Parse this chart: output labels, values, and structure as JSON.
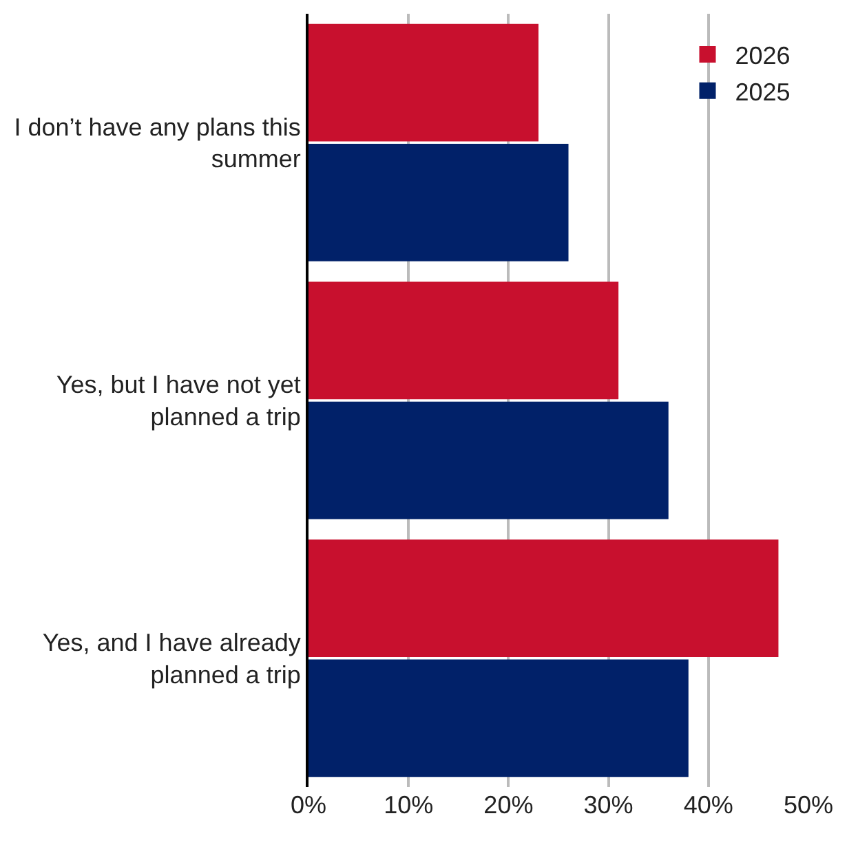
{
  "chart_data": {
    "type": "bar",
    "orientation": "horizontal",
    "categories": [
      "I don’t have any plans this summer",
      "Yes, but I have not yet planned a trip",
      "Yes, and I have already planned a trip"
    ],
    "series": [
      {
        "name": "2026",
        "color": "#c8102e",
        "values": [
          23,
          31,
          47
        ]
      },
      {
        "name": "2025",
        "color": "#012169",
        "values": [
          26,
          36,
          38
        ]
      }
    ],
    "xlim": [
      0,
      50
    ],
    "xticks": [
      {
        "value": 0,
        "label": "0%"
      },
      {
        "value": 10,
        "label": "10%"
      },
      {
        "value": 20,
        "label": "20%"
      },
      {
        "value": 30,
        "label": "30%"
      },
      {
        "value": 40,
        "label": "40%"
      },
      {
        "value": 50,
        "label": "50%"
      }
    ],
    "grid": "x",
    "legend": "top right"
  }
}
